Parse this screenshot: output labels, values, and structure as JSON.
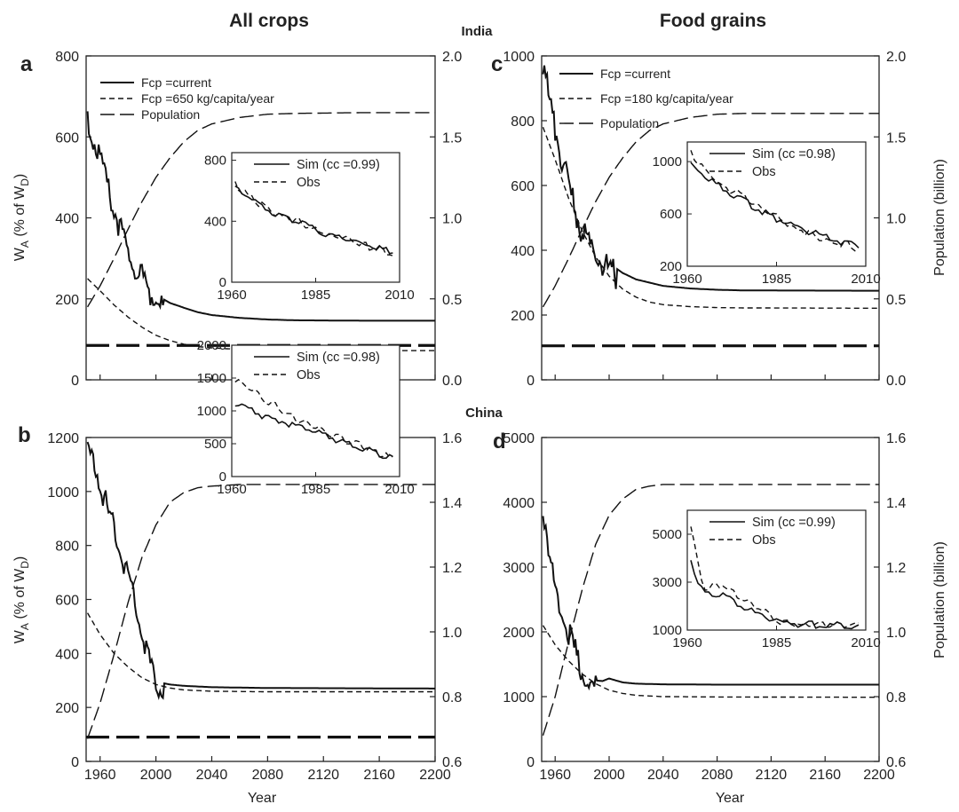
{
  "figure": {
    "col_titles": [
      "All crops",
      "Food grains"
    ],
    "row_titles": [
      "India",
      "China"
    ],
    "y_left_label": "W",
    "y_left_sub": "A",
    "y_left_paren": "(% of W",
    "y_left_paren_sub": "D",
    "y_left_paren_close": ")",
    "y_right_label": "Population (billion)",
    "x_label": "Year"
  },
  "chart_data": [
    {
      "type": "line",
      "panel": "a",
      "country": "India",
      "crop": "All crops",
      "xlim": [
        1950,
        2200
      ],
      "ylim": [
        0,
        800
      ],
      "y2lim": [
        0.0,
        2.0
      ],
      "xticks": [
        1960,
        2000,
        2040,
        2080,
        2120,
        2160,
        2200
      ],
      "yticks": [
        "0",
        "200",
        "400",
        "600",
        "800"
      ],
      "y2ticks": [
        "0.0",
        "0.5",
        "1.0",
        "1.5",
        "2.0"
      ],
      "threshold": 85,
      "legend": [
        "Fcp =current",
        "Fcp =650 kg/capita/year",
        "Population"
      ],
      "series": [
        {
          "name": "Fcp =current",
          "style": "solid",
          "axis": "left",
          "noisy_until": 2005,
          "x": [
            1951,
            1955,
            1960,
            1965,
            1970,
            1975,
            1980,
            1985,
            1990,
            1995,
            2000,
            2005,
            2010,
            2020,
            2030,
            2040,
            2060,
            2080,
            2100,
            2150,
            2200
          ],
          "y": [
            655,
            620,
            560,
            500,
            440,
            380,
            335,
            300,
            270,
            240,
            215,
            200,
            190,
            178,
            167,
            160,
            153,
            149,
            147,
            146,
            146
          ]
        },
        {
          "name": "Fcp =650 kg/capita/year",
          "style": "dash",
          "axis": "left",
          "x": [
            1951,
            1960,
            1970,
            1980,
            1990,
            2000,
            2010,
            2020,
            2030,
            2040,
            2060,
            2080,
            2100,
            2150,
            2200
          ],
          "y": [
            250,
            220,
            185,
            155,
            130,
            110,
            97,
            88,
            82,
            79,
            75,
            73,
            72,
            72,
            72
          ]
        },
        {
          "name": "Population",
          "style": "longdash",
          "axis": "right",
          "x": [
            1951,
            1960,
            1970,
            1980,
            1990,
            2000,
            2010,
            2020,
            2030,
            2040,
            2060,
            2080,
            2100,
            2150,
            2200
          ],
          "y": [
            0.45,
            0.58,
            0.75,
            0.93,
            1.1,
            1.25,
            1.37,
            1.47,
            1.54,
            1.58,
            1.62,
            1.64,
            1.645,
            1.65,
            1.65
          ]
        }
      ],
      "inset": {
        "xlim": [
          1960,
          2010
        ],
        "ylim": [
          0,
          850
        ],
        "xticks": [
          "1960",
          "1985",
          "2010"
        ],
        "yticks": [
          "0",
          "400",
          "800"
        ],
        "legend": [
          "Sim (cc =0.99)",
          "Obs"
        ],
        "series": [
          {
            "name": "Sim (cc =0.99)",
            "style": "solid",
            "x": [
              1961,
              1965,
              1970,
              1975,
              1980,
              1985,
              1990,
              1995,
              2000,
              2005,
              2008
            ],
            "y": [
              640,
              570,
              500,
              450,
              400,
              360,
              320,
              290,
              260,
              230,
              210
            ]
          },
          {
            "name": "Obs",
            "style": "dash",
            "x": [
              1961,
              1965,
              1970,
              1975,
              1980,
              1985,
              1990,
              1995,
              2000,
              2005,
              2008
            ],
            "y": [
              650,
              575,
              510,
              445,
              410,
              355,
              315,
              295,
              255,
              220,
              200
            ]
          }
        ]
      }
    },
    {
      "type": "line",
      "panel": "b",
      "country": "China",
      "crop": "All crops",
      "xlim": [
        1950,
        2200
      ],
      "ylim": [
        0,
        1200
      ],
      "y2lim": [
        0.6,
        1.6
      ],
      "xticks": [
        1960,
        2000,
        2040,
        2080,
        2120,
        2160,
        2200
      ],
      "yticks": [
        "0",
        "200",
        "400",
        "600",
        "800",
        "1000",
        "1200"
      ],
      "y2ticks": [
        "0.6",
        "0.8",
        "1.0",
        "1.2",
        "1.4",
        "1.6"
      ],
      "threshold": 90,
      "legend": [],
      "series": [
        {
          "name": "",
          "style": "solid",
          "axis": "left",
          "noisy_until": 2005,
          "x": [
            1951,
            1955,
            1960,
            1965,
            1970,
            1975,
            1980,
            1985,
            1990,
            1995,
            2000,
            2005,
            2010,
            2020,
            2040,
            2080,
            2200
          ],
          "y": [
            1170,
            1140,
            1060,
            960,
            880,
            800,
            720,
            620,
            510,
            400,
            320,
            290,
            285,
            280,
            275,
            272,
            270
          ]
        },
        {
          "name": "",
          "style": "dash",
          "axis": "left",
          "x": [
            1951,
            1960,
            1970,
            1980,
            1990,
            2000,
            2010,
            2020,
            2040,
            2080,
            2200
          ],
          "y": [
            550,
            470,
            400,
            350,
            310,
            285,
            272,
            265,
            260,
            258,
            258
          ]
        },
        {
          "name": "",
          "style": "longdash",
          "axis": "right",
          "x": [
            1951,
            1960,
            1970,
            1980,
            1990,
            2000,
            2010,
            2020,
            2030,
            2040,
            2060,
            2080,
            2100,
            2200
          ],
          "y": [
            0.67,
            0.78,
            0.93,
            1.09,
            1.23,
            1.33,
            1.4,
            1.43,
            1.445,
            1.45,
            1.455,
            1.455,
            1.455,
            1.455
          ]
        }
      ],
      "inset": {
        "xlim": [
          1960,
          2010
        ],
        "ylim": [
          0,
          2000
        ],
        "xticks": [
          "1960",
          "1985",
          "2010"
        ],
        "yticks": [
          "0",
          "500",
          "1000",
          "1500",
          "2000"
        ],
        "legend": [
          "Sim (cc =0.98)",
          "Obs"
        ],
        "series": [
          {
            "name": "Sim (cc =0.98)",
            "style": "solid",
            "x": [
              1961,
              1965,
              1970,
              1975,
              1980,
              1985,
              1990,
              1995,
              2000,
              2005,
              2008
            ],
            "y": [
              1150,
              1050,
              950,
              870,
              800,
              700,
              620,
              540,
              450,
              340,
              300
            ]
          },
          {
            "name": "Obs",
            "style": "dash",
            "x": [
              1961,
              1965,
              1970,
              1975,
              1980,
              1985,
              1990,
              1995,
              2000,
              2005,
              2008
            ],
            "y": [
              1520,
              1380,
              1200,
              1050,
              900,
              780,
              650,
              560,
              470,
              350,
              300
            ]
          }
        ]
      }
    },
    {
      "type": "line",
      "panel": "c",
      "country": "India",
      "crop": "Food grains",
      "xlim": [
        1950,
        2200
      ],
      "ylim": [
        0,
        1000
      ],
      "y2lim": [
        0.0,
        2.0
      ],
      "xticks": [
        1960,
        2000,
        2040,
        2080,
        2120,
        2160,
        2200
      ],
      "yticks": [
        "0",
        "200",
        "400",
        "600",
        "800",
        "1000"
      ],
      "y2ticks": [
        "0.0",
        "0.5",
        "1.0",
        "1.5",
        "2.0"
      ],
      "threshold": 105,
      "legend": [
        "Fcp =current",
        "Fcp =180 kg/capita/year",
        "Population"
      ],
      "series": [
        {
          "name": "Fcp =current",
          "style": "solid",
          "axis": "left",
          "noisy_until": 2005,
          "x": [
            1951,
            1955,
            1960,
            1965,
            1970,
            1975,
            1980,
            1985,
            1990,
            1995,
            2000,
            2005,
            2010,
            2020,
            2040,
            2060,
            2080,
            2100,
            2200
          ],
          "y": [
            1000,
            900,
            800,
            700,
            620,
            540,
            480,
            440,
            410,
            385,
            365,
            345,
            330,
            310,
            290,
            282,
            278,
            276,
            275
          ]
        },
        {
          "name": "Fcp =180 kg/capita/year",
          "style": "dash",
          "axis": "left",
          "x": [
            1951,
            1960,
            1970,
            1980,
            1990,
            2000,
            2010,
            2020,
            2030,
            2040,
            2060,
            2080,
            2100,
            2200
          ],
          "y": [
            780,
            680,
            560,
            460,
            380,
            320,
            280,
            255,
            240,
            232,
            226,
            223,
            222,
            221
          ]
        },
        {
          "name": "Population",
          "style": "longdash",
          "axis": "right",
          "x": [
            1951,
            1960,
            1970,
            1980,
            1990,
            2000,
            2010,
            2020,
            2030,
            2040,
            2060,
            2080,
            2100,
            2200
          ],
          "y": [
            0.45,
            0.58,
            0.75,
            0.93,
            1.1,
            1.25,
            1.37,
            1.47,
            1.54,
            1.58,
            1.62,
            1.64,
            1.645,
            1.645
          ]
        }
      ],
      "inset": {
        "xlim": [
          1960,
          2010
        ],
        "ylim": [
          200,
          1150
        ],
        "xticks": [
          "1960",
          "1985",
          "2010"
        ],
        "yticks": [
          "200",
          "600",
          "1000"
        ],
        "legend": [
          "Sim (cc =0.98)",
          "Obs"
        ],
        "series": [
          {
            "name": "Sim (cc =0.98)",
            "style": "solid",
            "x": [
              1961,
              1965,
              1970,
              1975,
              1980,
              1985,
              1990,
              1995,
              2000,
              2005,
              2008
            ],
            "y": [
              1000,
              900,
              810,
              730,
              650,
              580,
              520,
              470,
              420,
              390,
              370
            ]
          },
          {
            "name": "Obs",
            "style": "dash",
            "x": [
              1961,
              1965,
              1970,
              1975,
              1980,
              1985,
              1990,
              1995,
              2000,
              2005,
              2008
            ],
            "y": [
              1080,
              940,
              820,
              760,
              660,
              600,
              510,
              460,
              400,
              380,
              340
            ]
          }
        ]
      }
    },
    {
      "type": "line",
      "panel": "d",
      "country": "China",
      "crop": "Food grains",
      "xlim": [
        1950,
        2200
      ],
      "ylim": [
        0,
        5000
      ],
      "y2lim": [
        0.6,
        1.6
      ],
      "xticks": [
        1960,
        2000,
        2040,
        2080,
        2120,
        2160,
        2200
      ],
      "yticks": [
        "0",
        "1000",
        "2000",
        "3000",
        "4000",
        "5000"
      ],
      "y2ticks": [
        "0.6",
        "0.8",
        "1.0",
        "1.2",
        "1.4",
        "1.6"
      ],
      "threshold": null,
      "legend": [],
      "series": [
        {
          "name": "",
          "style": "solid",
          "axis": "left",
          "noisy_until": 1990,
          "x": [
            1951,
            1955,
            1960,
            1965,
            1970,
            1975,
            1980,
            1985,
            1990,
            1995,
            2000,
            2005,
            2010,
            2020,
            2040,
            2080,
            2200
          ],
          "y": [
            4100,
            3400,
            2700,
            2450,
            2100,
            1800,
            1500,
            1300,
            1250,
            1240,
            1280,
            1250,
            1220,
            1200,
            1190,
            1185,
            1185
          ]
        },
        {
          "name": "",
          "style": "dash",
          "axis": "left",
          "x": [
            1951,
            1960,
            1970,
            1980,
            1990,
            2000,
            2010,
            2020,
            2040,
            2080,
            2200
          ],
          "y": [
            2100,
            1800,
            1550,
            1350,
            1200,
            1100,
            1050,
            1020,
            1000,
            995,
            990
          ]
        },
        {
          "name": "",
          "style": "longdash",
          "axis": "right",
          "x": [
            1951,
            1960,
            1970,
            1980,
            1990,
            2000,
            2010,
            2020,
            2030,
            2040,
            2060,
            2080,
            2100,
            2200
          ],
          "y": [
            0.68,
            0.8,
            0.97,
            1.13,
            1.27,
            1.36,
            1.41,
            1.44,
            1.45,
            1.455,
            1.455,
            1.455,
            1.455,
            1.455
          ]
        }
      ],
      "inset": {
        "xlim": [
          1960,
          2010
        ],
        "ylim": [
          1000,
          6000
        ],
        "xticks": [
          "1960",
          "1985",
          "2010"
        ],
        "yticks": [
          "1000",
          "3000",
          "5000"
        ],
        "legend": [
          "Sim (cc =0.99)",
          "Obs"
        ],
        "series": [
          {
            "name": "Sim (cc =0.99)",
            "style": "solid",
            "x": [
              1961,
              1963,
              1965,
              1970,
              1975,
              1980,
              1985,
              1990,
              1995,
              2000,
              2005,
              2008
            ],
            "y": [
              4100,
              3000,
              2600,
              2500,
              2100,
              1700,
              1450,
              1350,
              1300,
              1300,
              1280,
              1280
            ]
          },
          {
            "name": "Obs",
            "style": "dash",
            "x": [
              1961,
              1963,
              1965,
              1970,
              1975,
              1980,
              1985,
              1990,
              1995,
              2000,
              2005,
              2008
            ],
            "y": [
              5500,
              3800,
              2800,
              3000,
              2400,
              2000,
              1500,
              1300,
              1250,
              1300,
              1250,
              1280
            ]
          }
        ]
      }
    }
  ]
}
